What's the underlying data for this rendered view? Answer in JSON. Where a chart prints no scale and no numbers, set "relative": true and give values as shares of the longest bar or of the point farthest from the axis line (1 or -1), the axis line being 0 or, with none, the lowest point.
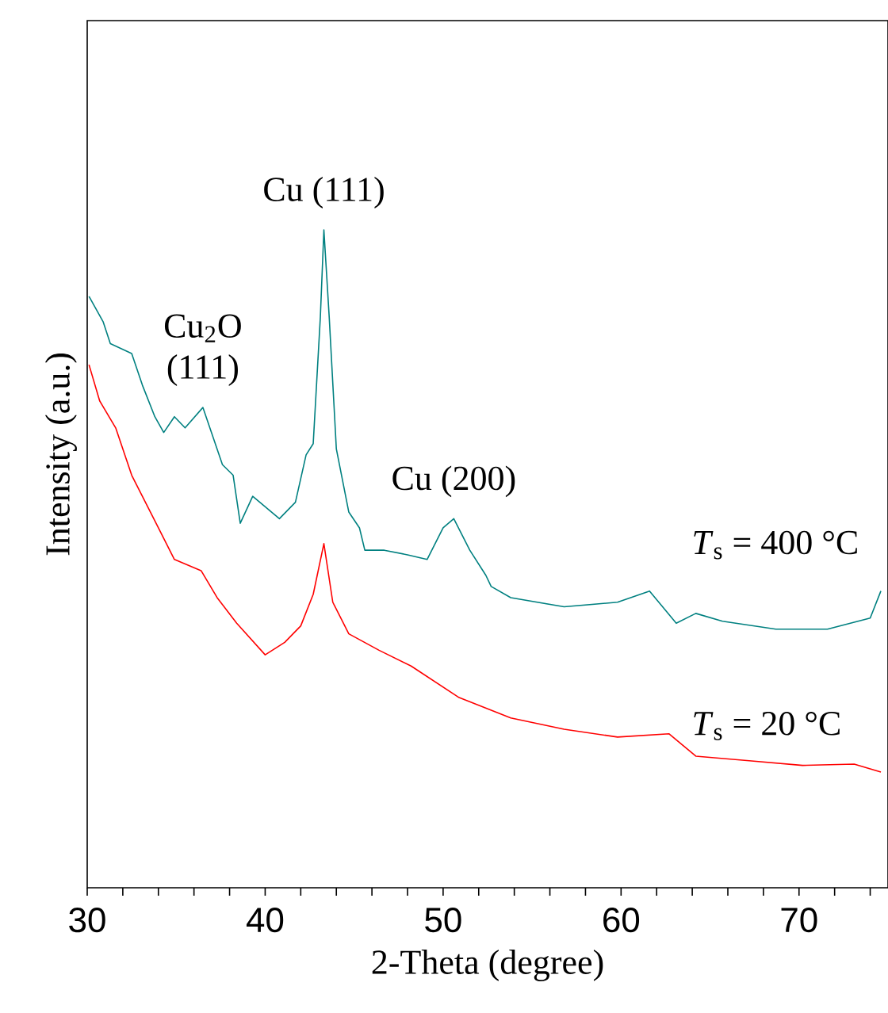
{
  "chart_data": {
    "type": "line",
    "relative": true,
    "xlabel": "2-Theta (degree)",
    "ylabel": "Intensity (a.u.)",
    "xlim": [
      30,
      75
    ],
    "xticks": [
      30,
      {
        "value": 32,
        "label": null
      },
      {
        "value": 34,
        "label": null
      },
      {
        "value": 36,
        "label": null
      },
      {
        "value": 38,
        "label": null
      },
      40,
      {
        "value": 42,
        "label": null
      },
      {
        "value": 44,
        "label": null
      },
      {
        "value": 46,
        "label": null
      },
      {
        "value": 48,
        "label": null
      },
      50,
      {
        "value": 52,
        "label": null
      },
      {
        "value": 54,
        "label": null
      },
      {
        "value": 56,
        "label": null
      },
      {
        "value": 58,
        "label": null
      },
      60,
      {
        "value": 62,
        "label": null
      },
      {
        "value": 64,
        "label": null
      },
      {
        "value": 66,
        "label": null
      },
      {
        "value": 68,
        "label": null
      },
      70,
      {
        "value": 72,
        "label": null
      },
      {
        "value": 74,
        "label": null
      }
    ],
    "series": [
      {
        "name": "*T*$_{s}$ = 400 °C",
        "color": "#008080",
        "x": [
          30.1,
          30.9,
          31.3,
          32.5,
          33.1,
          33.8,
          34.3,
          34.9,
          35.5,
          36.5,
          37.6,
          38.2,
          38.6,
          39.3,
          40.8,
          41.7,
          42.3,
          42.7,
          43.1,
          43.3,
          43.6,
          44.0,
          44.7,
          45.3,
          45.6,
          46.7,
          48.0,
          49.1,
          50.0,
          50.6,
          51.5,
          52.4,
          52.7,
          53.8,
          56.8,
          59.8,
          61.6,
          63.1,
          64.2,
          65.7,
          68.7,
          71.6,
          74.0,
          74.6
        ],
        "values": [
          0.899,
          0.86,
          0.827,
          0.812,
          0.764,
          0.716,
          0.692,
          0.716,
          0.699,
          0.73,
          0.643,
          0.627,
          0.554,
          0.595,
          0.561,
          0.586,
          0.658,
          0.675,
          0.867,
          1.0,
          0.867,
          0.667,
          0.571,
          0.547,
          0.513,
          0.513,
          0.506,
          0.499,
          0.547,
          0.561,
          0.513,
          0.475,
          0.458,
          0.441,
          0.427,
          0.434,
          0.451,
          0.402,
          0.417,
          0.405,
          0.393,
          0.393,
          0.41,
          0.451
        ]
      },
      {
        "name": "*T*$_{s}$ = 20 °C",
        "color": "#ff0000",
        "x": [
          30.1,
          30.7,
          31.6,
          32.5,
          33.1,
          34.0,
          34.9,
          36.4,
          37.3,
          38.4,
          40.0,
          41.1,
          42.0,
          42.7,
          43.3,
          43.8,
          44.7,
          46.4,
          48.2,
          50.9,
          53.8,
          56.8,
          59.8,
          62.7,
          64.2,
          67.2,
          70.2,
          73.1,
          74.6
        ],
        "values": [
          0.795,
          0.74,
          0.699,
          0.627,
          0.595,
          0.547,
          0.499,
          0.482,
          0.441,
          0.402,
          0.354,
          0.373,
          0.398,
          0.446,
          0.523,
          0.434,
          0.386,
          0.361,
          0.337,
          0.289,
          0.258,
          0.241,
          0.229,
          0.234,
          0.2,
          0.193,
          0.186,
          0.188,
          0.176
        ]
      }
    ],
    "annotations": [
      {
        "text": "Cu$_{2}$O (111)",
        "x": 36.5,
        "y": 0.73
      },
      {
        "text": "Cu (111)",
        "x": 43.3,
        "y": 1.0
      },
      {
        "text": "Cu (200)",
        "x": 50.6,
        "y": 0.561
      }
    ]
  }
}
